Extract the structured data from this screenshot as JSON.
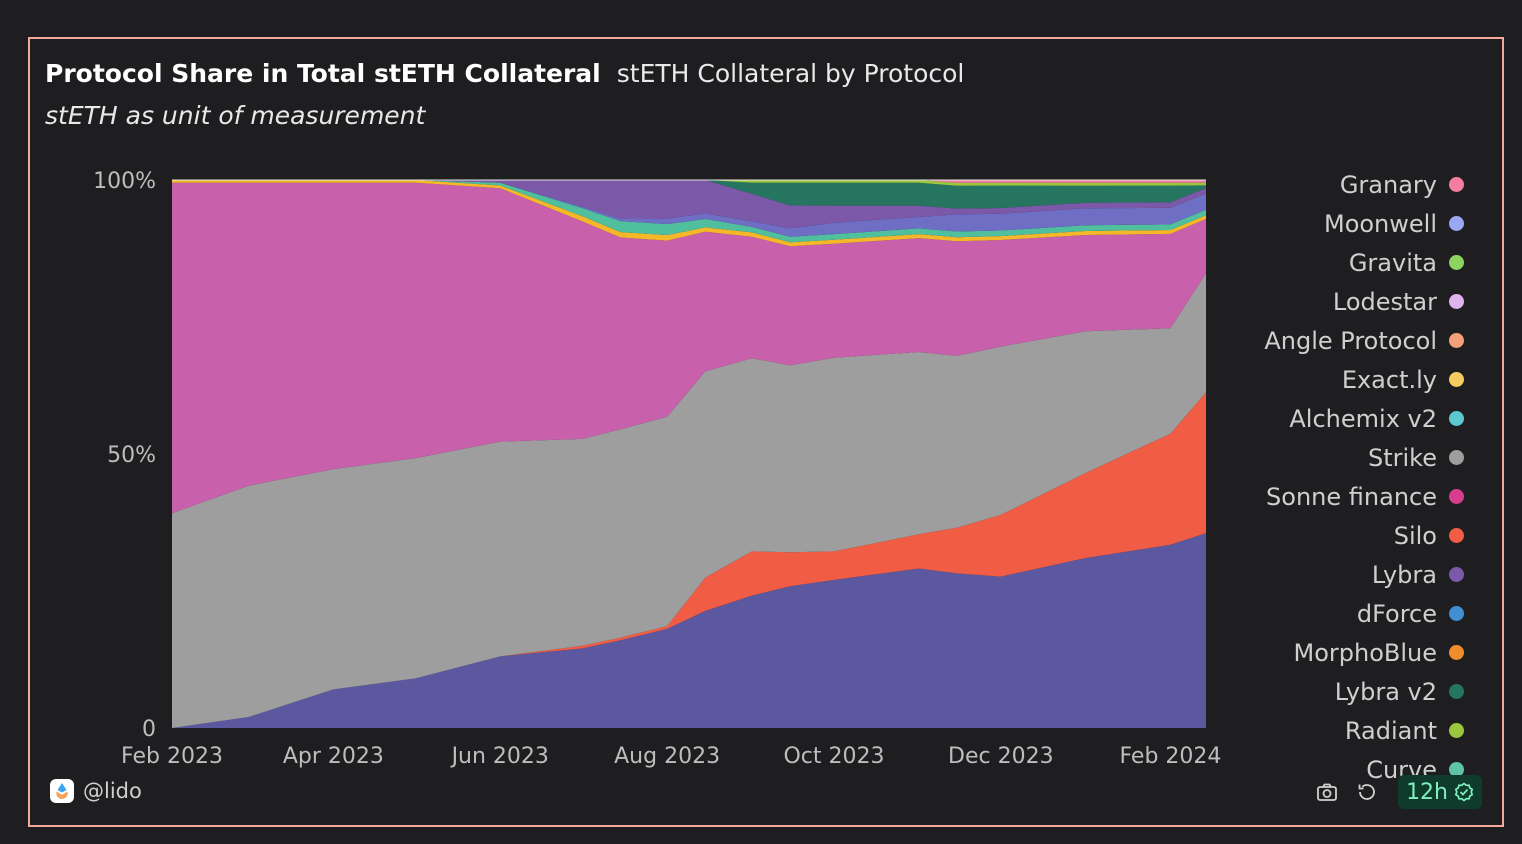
{
  "title": "Protocol Share in Total stETH Collateral",
  "title_inline": "stETH Collateral by Protocol",
  "subtitle": "stETH as unit of measurement",
  "footer": {
    "author": "@lido",
    "refresh": "12h"
  },
  "icons": {
    "camera": "camera-icon",
    "refresh": "refresh-icon",
    "check": "check-badge-icon",
    "logo": "lido-logo"
  },
  "legend": [
    {
      "name": "Granary",
      "color": "#f37ea0"
    },
    {
      "name": "Moonwell",
      "color": "#9aa8f3"
    },
    {
      "name": "Gravita",
      "color": "#8dd35f"
    },
    {
      "name": "Lodestar",
      "color": "#dfb4ec"
    },
    {
      "name": "Angle Protocol",
      "color": "#f4a07a"
    },
    {
      "name": "Exact.ly",
      "color": "#f5cc5f"
    },
    {
      "name": "Alchemix v2",
      "color": "#5ec8d1"
    },
    {
      "name": "Strike",
      "color": "#9e9e9e"
    },
    {
      "name": "Sonne finance",
      "color": "#d63d8f"
    },
    {
      "name": "Silo",
      "color": "#f05d44"
    },
    {
      "name": "Lybra",
      "color": "#7c58a8"
    },
    {
      "name": "dForce",
      "color": "#3f8fd2"
    },
    {
      "name": "MorphoBlue",
      "color": "#ef8d2c"
    },
    {
      "name": "Lybra v2",
      "color": "#267560"
    },
    {
      "name": "Radiant",
      "color": "#9bc73e"
    },
    {
      "name": "Curve",
      "color": "#5ec4a6"
    }
  ],
  "chart_data": {
    "type": "area",
    "stacked": "percent",
    "y_unit": "share of total stETH collateral (%)",
    "ylim": [
      0,
      100
    ],
    "y_ticks": [
      "0",
      "50%",
      "100%"
    ],
    "x_ticks": [
      "Feb 2023",
      "Apr 2023",
      "Jun 2023",
      "Aug 2023",
      "Oct 2023",
      "Dec 2023",
      "Feb 2024"
    ],
    "x": [
      "2023-02-01",
      "2023-03-01",
      "2023-04-01",
      "2023-05-01",
      "2023-06-01",
      "2023-07-01",
      "2023-07-15",
      "2023-08-01",
      "2023-08-15",
      "2023-09-01",
      "2023-09-15",
      "2023-10-01",
      "2023-11-01",
      "2023-11-15",
      "2023-12-01",
      "2024-01-01",
      "2024-02-01",
      "2024-02-14"
    ],
    "series": [
      {
        "name": "Curve",
        "color": "#5b58a0",
        "values": [
          0,
          2,
          7,
          9,
          13,
          15,
          16,
          18,
          21,
          24,
          25,
          26,
          28,
          27,
          27,
          30,
          33,
          36
        ]
      },
      {
        "name": "Silo",
        "color": "#f05d44",
        "values": [
          0,
          0,
          0,
          0,
          0,
          0.5,
          0.5,
          0.5,
          6,
          8,
          6,
          5,
          6,
          8,
          11,
          15,
          20,
          26
        ]
      },
      {
        "name": "Strike",
        "color": "#9e9e9e",
        "values": [
          39,
          42,
          40,
          40,
          39,
          39,
          38,
          38,
          37,
          35,
          33,
          34,
          32,
          30,
          30,
          25,
          19,
          22
        ]
      },
      {
        "name": "Sonne finance",
        "color": "#c960ac",
        "values": [
          60,
          55,
          52,
          50,
          46,
          41,
          35,
          32,
          25,
          22,
          21,
          20,
          20,
          20,
          19,
          17,
          17,
          10
        ]
      },
      {
        "name": "Exact.ly",
        "color": "#f5b82a",
        "values": [
          0.5,
          0.5,
          0.5,
          0.5,
          0.5,
          1,
          1,
          1,
          0.8,
          0.8,
          0.7,
          0.7,
          0.7,
          0.7,
          0.7,
          0.7,
          0.7,
          0.7
        ]
      },
      {
        "name": "Alchemix v2",
        "color": "#4fbf9e",
        "values": [
          0,
          0,
          0,
          0,
          0.5,
          1.5,
          2,
          2,
          1.5,
          1,
          1,
          1,
          1,
          1,
          1,
          1,
          1,
          1
        ]
      },
      {
        "name": "Moonwell",
        "color": "#6e6ec4",
        "values": [
          0,
          0,
          0,
          0,
          0,
          0.3,
          0.5,
          1,
          1,
          1,
          1.5,
          2,
          2,
          3,
          3,
          3,
          3,
          3
        ]
      },
      {
        "name": "Lybra",
        "color": "#7c58a8",
        "values": [
          0,
          0,
          0,
          0,
          0.5,
          5,
          7,
          7,
          6,
          5,
          4,
          3,
          2,
          1,
          1,
          1,
          1,
          1
        ]
      },
      {
        "name": "Lybra v2",
        "color": "#267560",
        "values": [
          0,
          0,
          0,
          0,
          0,
          0,
          0,
          0,
          0,
          2,
          4,
          4,
          4,
          4,
          4,
          3,
          3,
          0.5
        ]
      },
      {
        "name": "Radiant",
        "color": "#9bc73e",
        "values": [
          0,
          0,
          0,
          0,
          0,
          0,
          0,
          0,
          0,
          0.5,
          0.5,
          0.5,
          0.5,
          0.5,
          0.5,
          0.5,
          0.5,
          0.5
        ]
      },
      {
        "name": "Granary",
        "color": "#f37ea0",
        "values": [
          0,
          0,
          0,
          0,
          0,
          0,
          0,
          0,
          0,
          0,
          0,
          0,
          0,
          0.5,
          0.5,
          0.5,
          0.5,
          0.5
        ]
      }
    ]
  }
}
